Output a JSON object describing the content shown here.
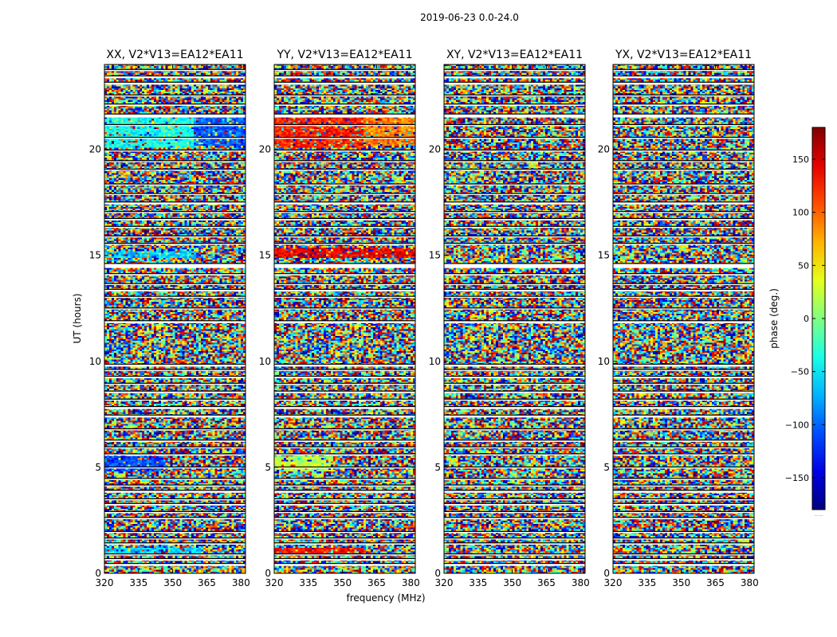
{
  "chart_data": {
    "type": "heatmap",
    "suptitle": "2019-06-23 0.0-24.0",
    "xlabel": "frequency (MHz)",
    "ylabel": "UT (hours)",
    "xlim": [
      320,
      382
    ],
    "ylim": [
      0,
      24
    ],
    "xticks": [
      320,
      335,
      350,
      365,
      380
    ],
    "yticks": [
      0,
      5,
      10,
      15,
      20
    ],
    "colorbar": {
      "label": "phase (deg.)",
      "range": [
        -180,
        180
      ],
      "ticks": [
        -150,
        -100,
        -50,
        0,
        50,
        100,
        150
      ],
      "tick_labels": [
        "−150",
        "−100",
        "−50",
        "0",
        "50",
        "100",
        "150"
      ],
      "colormap": "jet",
      "colors": [
        "#00007f",
        "#0000ff",
        "#007fff",
        "#00ffff",
        "#7fff7f",
        "#ffff00",
        "#ff7f00",
        "#ff0000",
        "#7f0000"
      ],
      "footnote": "......"
    },
    "panels": [
      {
        "title": "XX, V2*V13=EA12*EA11",
        "mean_phase_note": "noise; coherent bands near -60 deg",
        "coherent_bands": [
          {
            "ut": [
              0.9,
              1.2
            ],
            "freq": [
              320,
              362
            ],
            "phase": -60
          },
          {
            "ut": [
              4.8,
              5.5
            ],
            "freq": [
              320,
              345
            ],
            "phase": -110
          },
          {
            "ut": [
              14.9,
              15.2
            ],
            "freq": [
              320,
              360
            ],
            "phase": -60
          },
          {
            "ut": [
              20.1,
              21.5
            ],
            "freq": [
              320,
              360
            ],
            "phase": -40
          },
          {
            "ut": [
              20.2,
              21.5
            ],
            "freq": [
              360,
              382
            ],
            "phase": -100
          }
        ]
      },
      {
        "title": "YY, V2*V13=EA12*EA11",
        "mean_phase_note": "noise; coherent bands near +120 deg",
        "coherent_bands": [
          {
            "ut": [
              0.9,
              1.2
            ],
            "freq": [
              320,
              360
            ],
            "phase": 130
          },
          {
            "ut": [
              4.8,
              5.5
            ],
            "freq": [
              320,
              345
            ],
            "phase": 20
          },
          {
            "ut": [
              14.9,
              15.3
            ],
            "freq": [
              320,
              382
            ],
            "phase": 140
          },
          {
            "ut": [
              20.1,
              21.6
            ],
            "freq": [
              320,
              360
            ],
            "phase": 125
          },
          {
            "ut": [
              20.2,
              21.6
            ],
            "freq": [
              360,
              382
            ],
            "phase": 90
          }
        ]
      },
      {
        "title": "XY, V2*V13=EA12*EA11",
        "mean_phase_note": "noise",
        "coherent_bands": []
      },
      {
        "title": "YX, V2*V13=EA12*EA11",
        "mean_phase_note": "noise",
        "coherent_bands": []
      }
    ],
    "gaps_ut": [
      [
        0.35,
        0.45
      ],
      [
        0.6,
        0.68
      ],
      [
        0.85,
        0.9
      ],
      [
        1.35,
        1.42
      ],
      [
        1.6,
        1.65
      ],
      [
        1.9,
        1.96
      ],
      [
        2.55,
        2.62
      ],
      [
        2.85,
        2.9
      ],
      [
        3.2,
        3.28
      ],
      [
        3.45,
        3.5
      ],
      [
        3.8,
        3.9
      ],
      [
        4.1,
        4.15
      ],
      [
        4.4,
        4.46
      ],
      [
        4.95,
        5.0
      ],
      [
        5.55,
        5.62
      ],
      [
        5.9,
        5.95
      ],
      [
        6.2,
        6.27
      ],
      [
        6.75,
        6.8
      ],
      [
        7.35,
        7.45
      ],
      [
        7.75,
        7.85
      ],
      [
        8.15,
        8.2
      ],
      [
        8.5,
        8.58
      ],
      [
        8.9,
        8.95
      ],
      [
        9.2,
        9.28
      ],
      [
        9.55,
        9.6
      ],
      [
        9.75,
        9.85
      ],
      [
        11.8,
        11.9
      ],
      [
        12.45,
        12.5
      ],
      [
        13.0,
        13.05
      ],
      [
        13.3,
        13.38
      ],
      [
        13.6,
        13.65
      ],
      [
        14.05,
        14.12
      ],
      [
        14.4,
        14.6
      ],
      [
        15.5,
        15.55
      ],
      [
        15.85,
        15.9
      ],
      [
        16.3,
        16.35
      ],
      [
        16.65,
        16.72
      ],
      [
        17.0,
        17.05
      ],
      [
        17.4,
        17.5
      ],
      [
        17.85,
        17.9
      ],
      [
        18.3,
        18.35
      ],
      [
        19.0,
        19.05
      ],
      [
        19.4,
        19.45
      ],
      [
        19.9,
        19.95
      ],
      [
        20.5,
        20.55
      ],
      [
        21.1,
        21.15
      ],
      [
        21.5,
        21.65
      ],
      [
        22.05,
        22.12
      ],
      [
        22.5,
        22.55
      ],
      [
        23.05,
        23.15
      ],
      [
        23.35,
        23.45
      ],
      [
        23.7,
        23.75
      ]
    ]
  }
}
